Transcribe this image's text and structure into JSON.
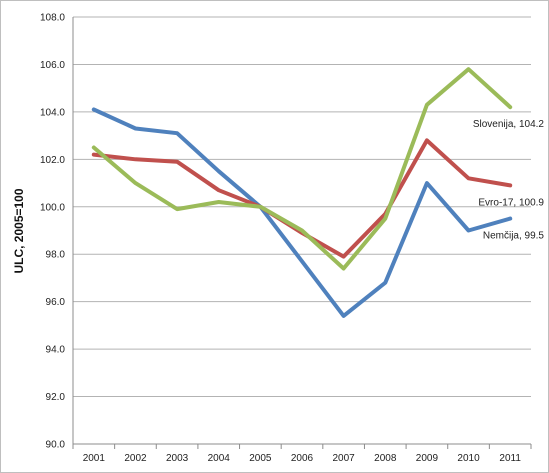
{
  "chart_data": {
    "type": "line",
    "title": "",
    "xlabel": "",
    "ylabel": "ULC, 2005=100",
    "x": [
      "2001",
      "2002",
      "2003",
      "2004",
      "2005",
      "2006",
      "2007",
      "2008",
      "2009",
      "2010",
      "2011"
    ],
    "ylim": [
      90.0,
      108.0
    ],
    "yticks": [
      "90.0",
      "92.0",
      "94.0",
      "96.0",
      "98.0",
      "100.0",
      "102.0",
      "104.0",
      "106.0",
      "108.0"
    ],
    "grid": true,
    "legend": "none",
    "series": [
      {
        "name": "Nemčija",
        "color": "#4f81bd",
        "values": [
          104.1,
          103.3,
          103.1,
          101.5,
          100.0,
          97.7,
          95.4,
          96.8,
          101.0,
          99.0,
          99.5
        ],
        "end_label": "Nemčija, 99.5"
      },
      {
        "name": "Evro-17",
        "color": "#c0504d",
        "values": [
          102.2,
          102.0,
          101.9,
          100.7,
          100.0,
          98.9,
          97.9,
          99.7,
          102.8,
          101.2,
          100.9
        ],
        "end_label": "Evro-17, 100.9"
      },
      {
        "name": "Slovenija",
        "color": "#9bbb59",
        "values": [
          102.5,
          101.0,
          99.9,
          100.2,
          100.0,
          99.0,
          97.4,
          99.5,
          104.3,
          105.8,
          104.2
        ],
        "end_label": "Slovenija, 104.2"
      }
    ]
  }
}
